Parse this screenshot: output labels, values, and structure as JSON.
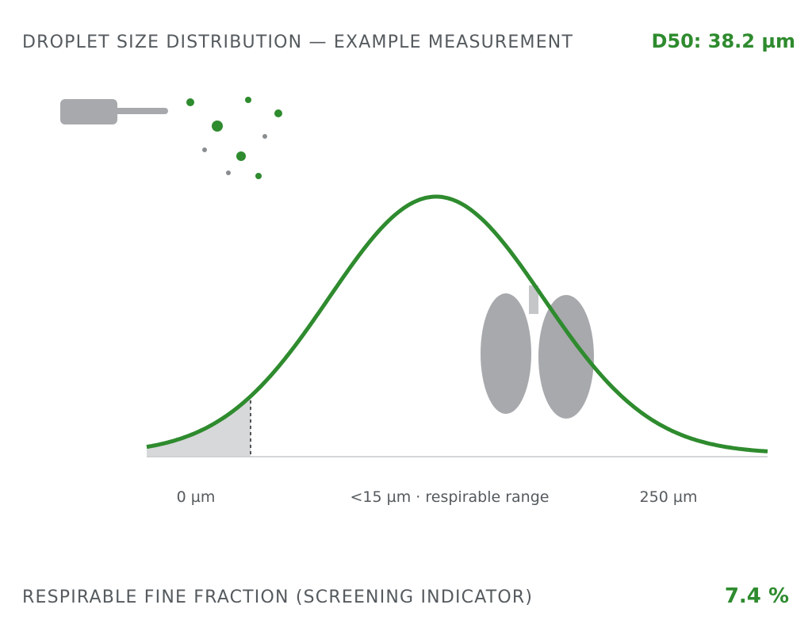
{
  "header": {
    "title": "DROPLET SIZE DISTRIBUTION — EXAMPLE MEASUREMENT",
    "d50": "D50: 38.2 µm"
  },
  "axis_labels": [
    "0 µm",
    "<15 µm · respirable range",
    "250 µm"
  ],
  "footer": {
    "label": "RESPIRABLE FINE FRACTION (SCREENING INDICATOR)",
    "value": "7.4 %"
  }
}
